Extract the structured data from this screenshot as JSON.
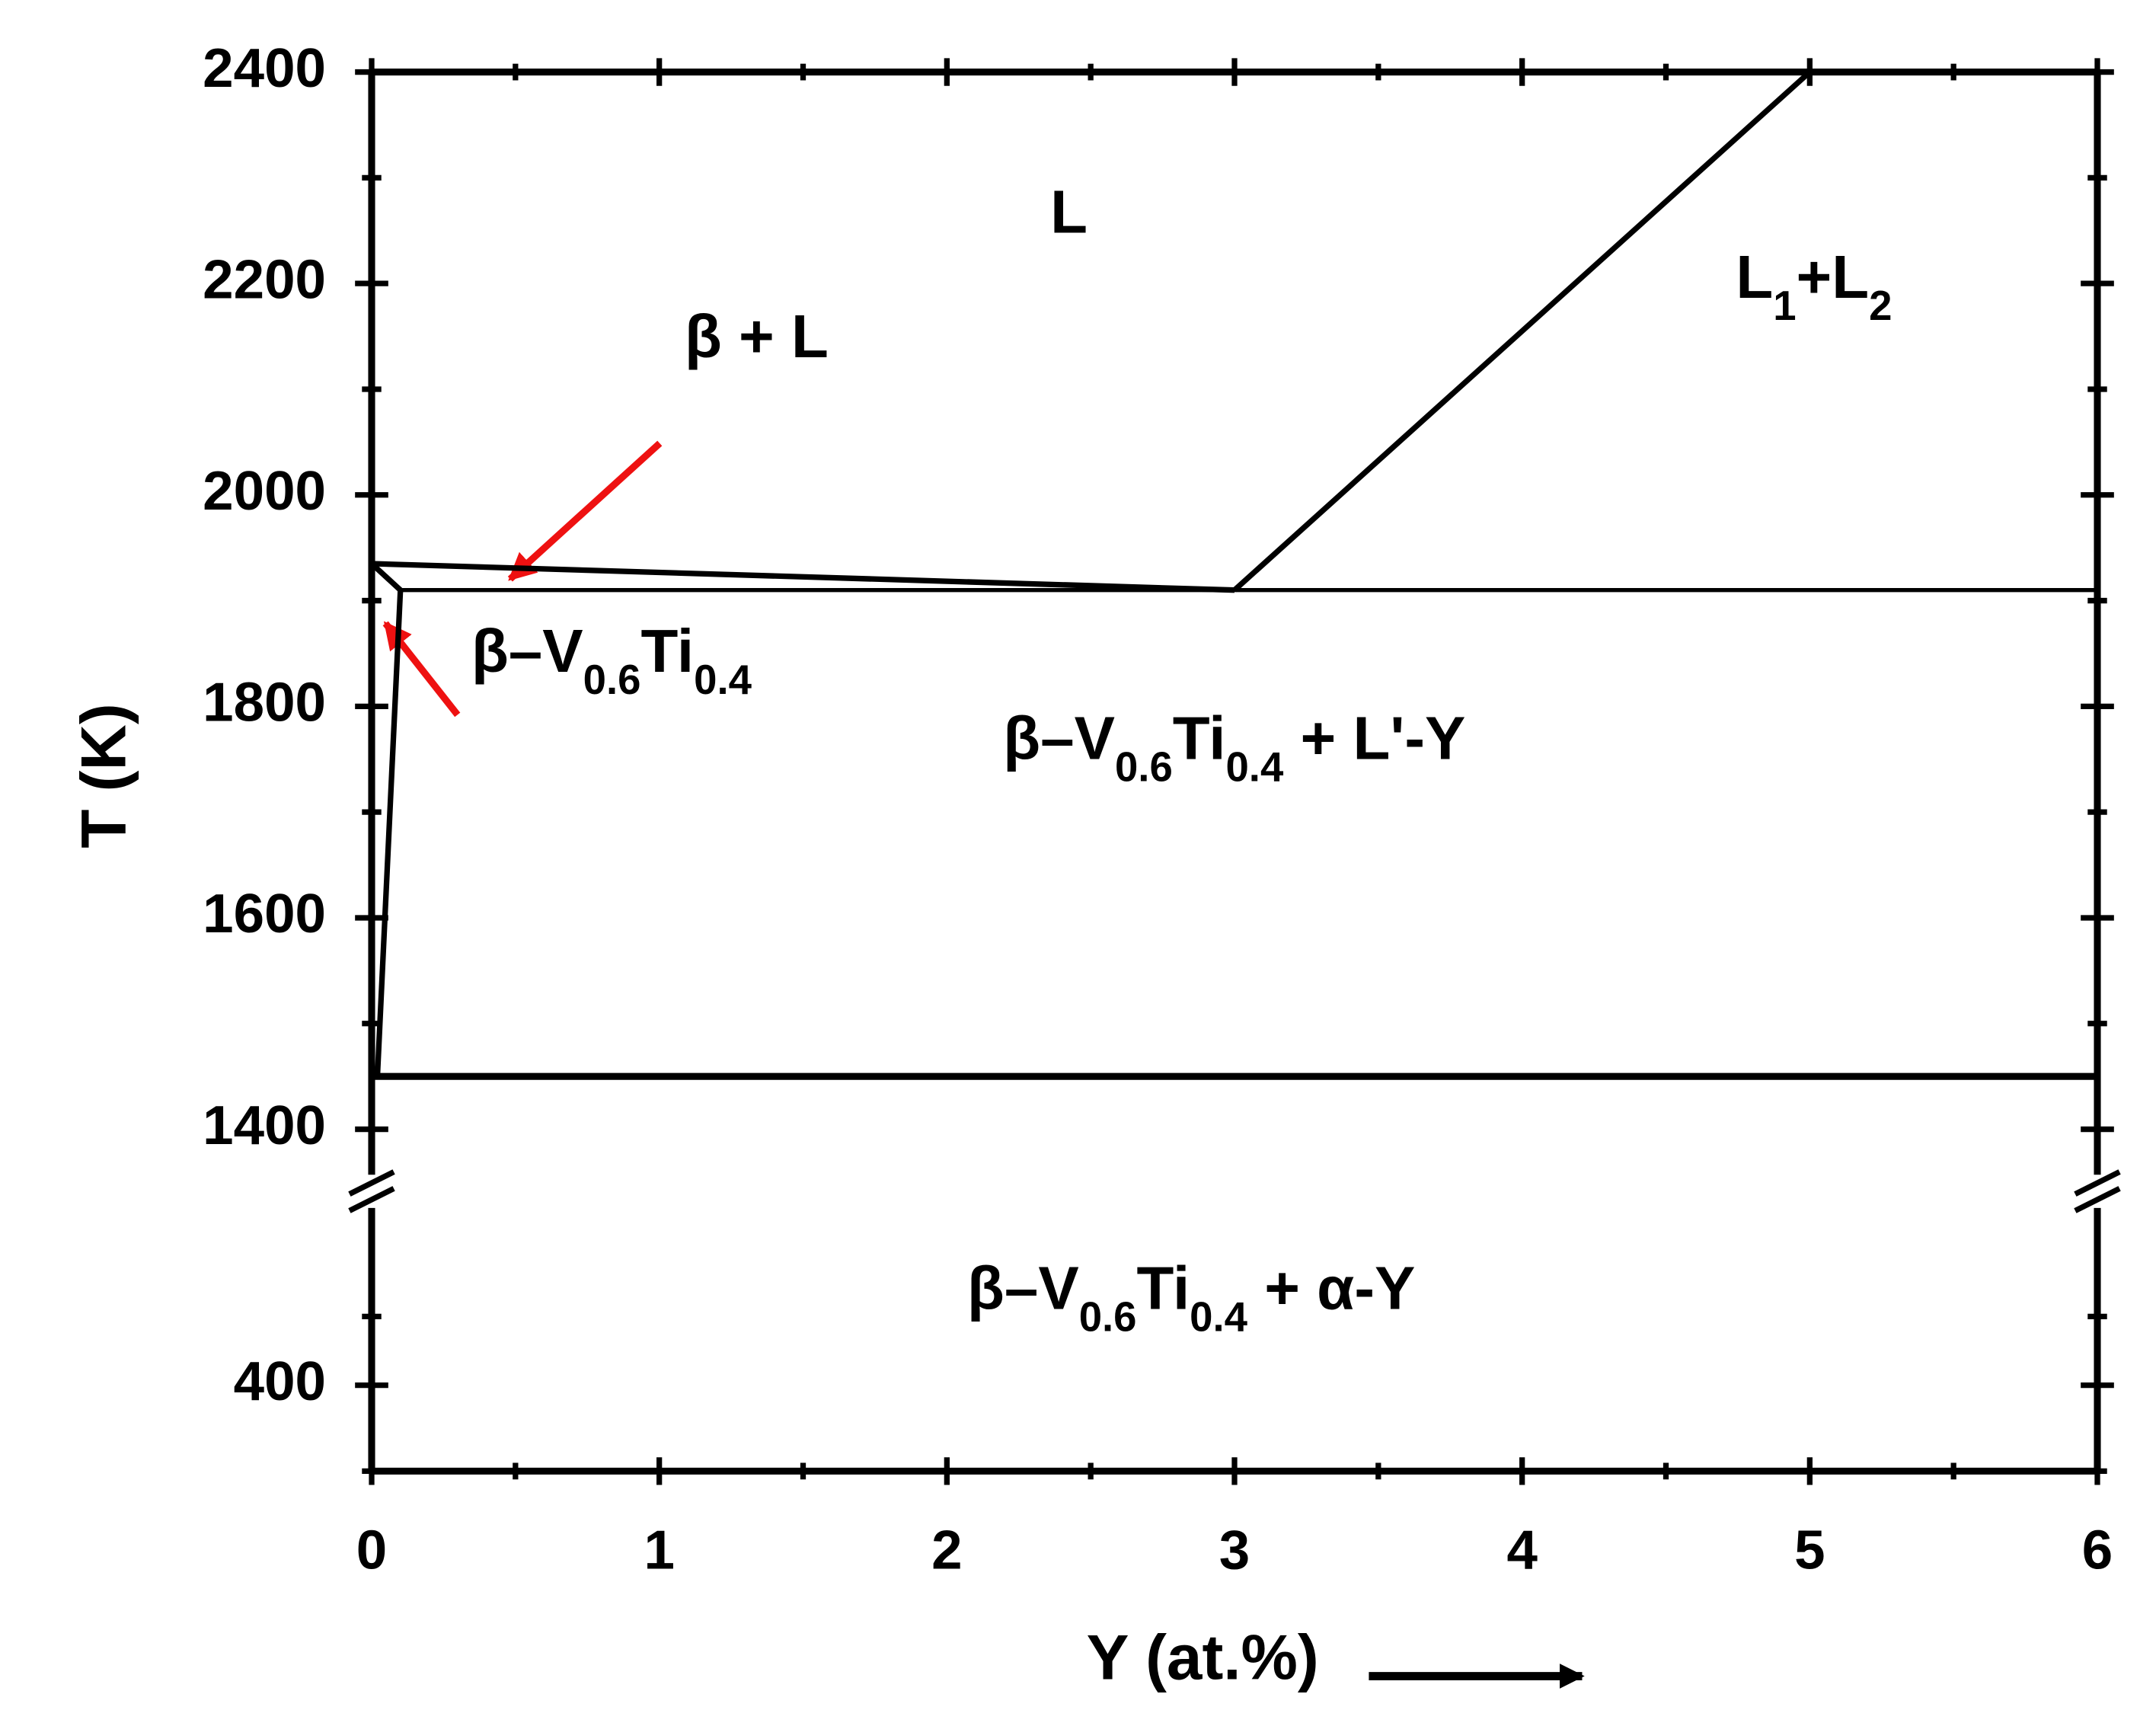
{
  "chart_data": {
    "type": "line",
    "x_label": "Y (at.%)",
    "y_label": "T (K)",
    "xlim": [
      0,
      6
    ],
    "xticks": [
      0,
      1,
      2,
      3,
      4,
      5,
      6
    ],
    "panels": [
      {
        "ylim": [
          1340,
          2400
        ],
        "yticks": [
          1400,
          1600,
          1800,
          2000,
          2200,
          2400
        ]
      },
      {
        "ylim": [
          300,
          600
        ],
        "yticks": [
          400
        ]
      }
    ],
    "series": [
      {
        "color": "#000000",
        "line_width": 4,
        "x": [
          0,
          3
        ],
        "values": [
          1935,
          1910
        ]
      },
      {
        "color": "#000000",
        "line_width": 4,
        "x": [
          3,
          5
        ],
        "values": [
          1910,
          2400
        ]
      },
      {
        "color": "#000000",
        "line_width": 3,
        "x": [
          0.1,
          6
        ],
        "values": [
          1910,
          1910
        ]
      },
      {
        "color": "#000000",
        "line_width": 4,
        "x": [
          0,
          0.1,
          0.02
        ],
        "values": [
          1935,
          1910,
          1450
        ]
      },
      {
        "color": "#000000",
        "line_width": 5,
        "x": [
          0,
          6
        ],
        "values": [
          1450,
          1450
        ]
      }
    ],
    "annotations": [
      {
        "segments": [
          {
            "text": "L"
          }
        ]
      },
      {
        "segments": [
          {
            "text": "L"
          },
          {
            "sub": "1"
          },
          {
            "text": "+L"
          },
          {
            "sub": "2"
          }
        ]
      },
      {
        "segments": [
          {
            "text": "β + L"
          }
        ]
      },
      {
        "segments": [
          {
            "text": "β–V"
          },
          {
            "sub": "0.6"
          },
          {
            "text": "Ti"
          },
          {
            "sub": "0.4"
          }
        ]
      },
      {
        "segments": [
          {
            "text": "β–V"
          },
          {
            "sub": "0.6"
          },
          {
            "text": "Ti"
          },
          {
            "sub": "0.4"
          },
          {
            "text": " + L'-Y"
          }
        ]
      },
      {
        "segments": [
          {
            "text": "β–V"
          },
          {
            "sub": "0.6"
          },
          {
            "text": "Ti"
          },
          {
            "sub": "0.4"
          },
          {
            "text": " + α-Y"
          }
        ]
      }
    ]
  }
}
